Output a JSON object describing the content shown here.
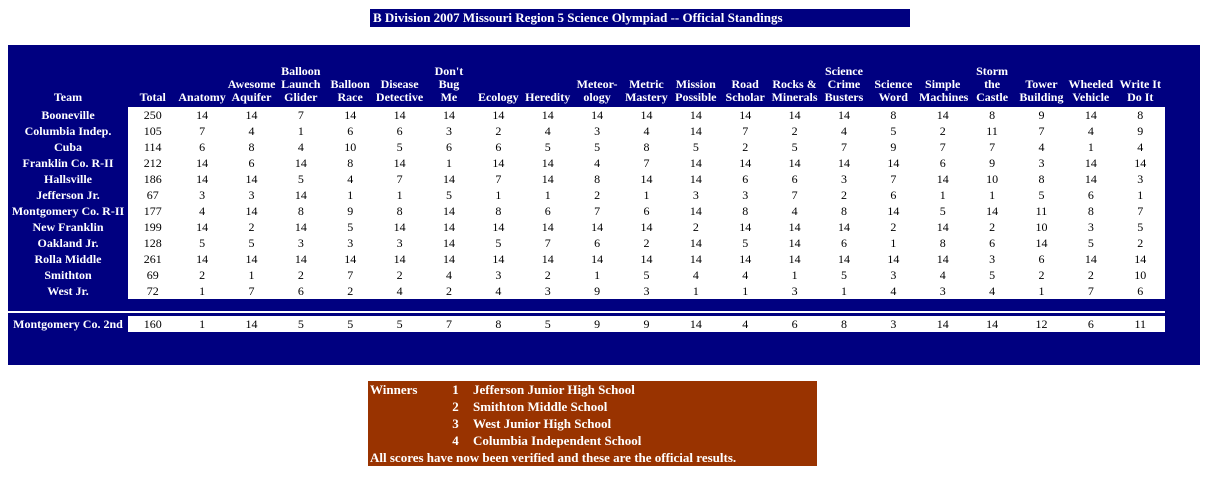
{
  "title": "B Division 2007 Missouri Region 5 Science Olympiad -- Official Standings",
  "colors": {
    "navy": "#000080",
    "brown": "#993300",
    "data_text": "#000000",
    "header_text": "#ffffff"
  },
  "table": {
    "team_header": "Team",
    "columns": [
      "Total",
      "Anatomy",
      "Awesome\nAquifer",
      "Balloon\nLaunch\nGlider",
      "Balloon\nRace",
      "Disease\nDetective",
      "Don't\nBug\nMe",
      "Ecology",
      "Heredity",
      "Meteor-\nology",
      "Metric\nMastery",
      "Mission\nPossible",
      "Road\nScholar",
      "Rocks &\nMinerals",
      "Science\nCrime\nBusters",
      "Science\nWord",
      "Simple\nMachines",
      "Storm the\nCastle",
      "Tower\nBuilding",
      "Wheeled\nVehicle",
      "Write It\nDo It"
    ],
    "rows": [
      {
        "team": "Booneville",
        "values": [
          250,
          14,
          14,
          7,
          14,
          14,
          14,
          14,
          14,
          14,
          14,
          14,
          14,
          14,
          14,
          8,
          14,
          8,
          9,
          14,
          8
        ]
      },
      {
        "team": "Columbia Indep.",
        "values": [
          105,
          7,
          4,
          1,
          6,
          6,
          3,
          2,
          4,
          3,
          4,
          14,
          7,
          2,
          4,
          5,
          2,
          11,
          7,
          4,
          9
        ]
      },
      {
        "team": "Cuba",
        "values": [
          114,
          6,
          8,
          4,
          10,
          5,
          6,
          6,
          5,
          5,
          8,
          5,
          2,
          5,
          7,
          9,
          7,
          7,
          4,
          1,
          4
        ]
      },
      {
        "team": "Franklin Co. R-II",
        "values": [
          212,
          14,
          6,
          14,
          8,
          14,
          1,
          14,
          14,
          4,
          7,
          14,
          14,
          14,
          14,
          14,
          6,
          9,
          3,
          14,
          14
        ]
      },
      {
        "team": "Hallsville",
        "values": [
          186,
          14,
          14,
          5,
          4,
          7,
          14,
          7,
          14,
          8,
          14,
          14,
          6,
          6,
          3,
          7,
          14,
          10,
          8,
          14,
          3
        ]
      },
      {
        "team": "Jefferson Jr.",
        "values": [
          67,
          3,
          3,
          14,
          1,
          1,
          5,
          1,
          1,
          2,
          1,
          3,
          3,
          7,
          2,
          6,
          1,
          1,
          5,
          6,
          1
        ]
      },
      {
        "team": "Montgomery Co. R-II",
        "values": [
          177,
          4,
          14,
          8,
          9,
          8,
          14,
          8,
          6,
          7,
          6,
          14,
          8,
          4,
          8,
          14,
          5,
          14,
          11,
          8,
          7
        ]
      },
      {
        "team": "New Franklin",
        "values": [
          199,
          14,
          2,
          14,
          5,
          14,
          14,
          14,
          14,
          14,
          14,
          2,
          14,
          14,
          14,
          2,
          14,
          2,
          10,
          3,
          5
        ]
      },
      {
        "team": "Oakland Jr.",
        "values": [
          128,
          5,
          5,
          3,
          3,
          3,
          14,
          5,
          7,
          6,
          2,
          14,
          5,
          14,
          6,
          1,
          8,
          6,
          14,
          5,
          2
        ]
      },
      {
        "team": "Rolla Middle",
        "values": [
          261,
          14,
          14,
          14,
          14,
          14,
          14,
          14,
          14,
          14,
          14,
          14,
          14,
          14,
          14,
          14,
          14,
          3,
          6,
          14,
          14
        ]
      },
      {
        "team": "Smithton",
        "values": [
          69,
          2,
          1,
          2,
          7,
          2,
          4,
          3,
          2,
          1,
          5,
          4,
          4,
          1,
          5,
          3,
          4,
          5,
          2,
          2,
          10
        ]
      },
      {
        "team": "West Jr.",
        "values": [
          72,
          1,
          7,
          6,
          2,
          4,
          2,
          4,
          3,
          9,
          3,
          1,
          1,
          3,
          1,
          4,
          3,
          4,
          1,
          7,
          6
        ]
      }
    ],
    "extra_row": {
      "team": "Montgomery Co. 2nd",
      "values": [
        160,
        1,
        14,
        5,
        5,
        5,
        7,
        8,
        5,
        9,
        9,
        14,
        4,
        6,
        8,
        3,
        14,
        14,
        12,
        6,
        11
      ]
    }
  },
  "winners": {
    "label": "Winners",
    "entries": [
      {
        "rank": "1",
        "school": "Jefferson Junior High School"
      },
      {
        "rank": "2",
        "school": "Smithton Middle School"
      },
      {
        "rank": "3",
        "school": "West Junior High School"
      },
      {
        "rank": "4",
        "school": "Columbia Independent School"
      }
    ],
    "note": "All scores have now been verified and these are the official results."
  }
}
